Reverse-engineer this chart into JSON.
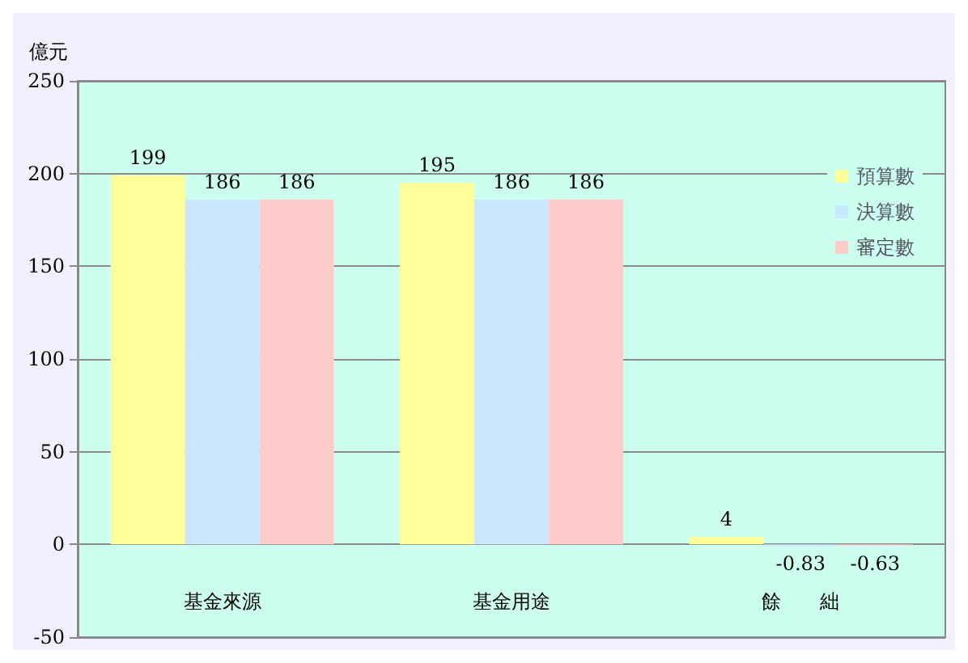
{
  "chart_data": {
    "type": "bar",
    "ylabel": "億元",
    "categories": [
      "基金來源",
      "基金用途",
      "餘　　絀"
    ],
    "series": [
      {
        "name": "預算數",
        "color": "#ffff99",
        "values": [
          199,
          195,
          4
        ]
      },
      {
        "name": "決算數",
        "color": "#cce8ff",
        "values": [
          186,
          186,
          -0.83
        ]
      },
      {
        "name": "審定數",
        "color": "#ffcccc",
        "values": [
          186,
          186,
          -0.63
        ]
      }
    ],
    "ylim": [
      -50,
      250
    ],
    "yticks": [
      -50,
      0,
      50,
      100,
      150,
      200,
      250
    ],
    "grid": "y",
    "legend": "right",
    "data_labels": true
  }
}
